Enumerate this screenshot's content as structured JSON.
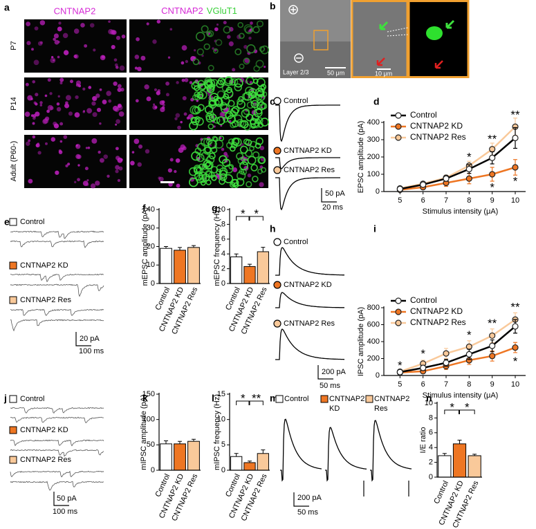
{
  "panel_letters": [
    "a",
    "b",
    "c",
    "d",
    "e",
    "f",
    "g",
    "h",
    "i",
    "j",
    "k",
    "l",
    "m",
    "n"
  ],
  "panel_a": {
    "columns": [
      [
        "CNTNAP2"
      ],
      [
        "CNTNAP2",
        "VGluT1"
      ]
    ],
    "rows": [
      "P7",
      "P14",
      "Adult (P60-)"
    ]
  },
  "panel_b": {
    "label": "Layer 2/3",
    "scale_bars": [
      "50 μm",
      "10 μm"
    ]
  },
  "panel_c": {
    "labels": [
      "Control",
      "CNTNAP2 KD",
      "CNTNAP2 Res"
    ],
    "scale_bars": [
      "50 pA",
      "20 ms"
    ]
  },
  "panel_e": {
    "labels": [
      "Control",
      "CNTNAP2 KD",
      "CNTNAP2 Res"
    ],
    "scale_bars": [
      "20 pA",
      "100 ms"
    ]
  },
  "panel_h": {
    "labels": [
      "Control",
      "CNTNAP2 KD",
      "CNTNAP2 Res"
    ],
    "scale_bars": [
      "200 pA",
      "50 ms"
    ]
  },
  "panel_j": {
    "labels": [
      "Control",
      "CNTNAP2 KD",
      "CNTNAP2 Res"
    ],
    "scale_bars": [
      "50 pA",
      "100 ms"
    ]
  },
  "panel_m": {
    "labels": [
      [
        "Control"
      ],
      [
        "CNTNAP2",
        "KD"
      ],
      [
        "CNTNAP2",
        "Res"
      ]
    ],
    "scale_bars": [
      "200 pA",
      "50 ms"
    ]
  },
  "chart_data": [
    {
      "type": "line",
      "ylabel": "EPSC amplitude (pA)",
      "xlabel": "Stimulus intensity (μA)",
      "x": [
        5,
        6,
        7,
        8,
        9,
        10
      ],
      "xlim": [
        4.3,
        10.45
      ],
      "xticks": [
        5,
        6,
        7,
        8,
        9,
        10
      ],
      "ylim": [
        0,
        400
      ],
      "yticks": [
        0,
        100,
        200,
        300,
        400
      ],
      "legend": "upper left",
      "series": [
        {
          "name": "Control",
          "color": "#000000",
          "marker_color": "#ffffff",
          "values": [
            15,
            40,
            75,
            130,
            195,
            310
          ],
          "errors": [
            5,
            10,
            15,
            25,
            35,
            60
          ]
        },
        {
          "name": "CNTNAP2 KD",
          "color": "#ee7623",
          "marker_color": "#ee7623",
          "values": [
            10,
            25,
            50,
            75,
            100,
            140
          ],
          "errors": [
            5,
            10,
            20,
            30,
            40,
            45
          ]
        },
        {
          "name": "CNTNAP2 Res",
          "color": "#f9c99a",
          "marker_color": "#f9c99a",
          "values": [
            18,
            45,
            80,
            150,
            245,
            375
          ],
          "errors": [
            5,
            10,
            15,
            25,
            35,
            50
          ]
        }
      ],
      "annotations": [
        {
          "text": "*",
          "x": 8,
          "y": 195
        },
        {
          "text": "**",
          "x": 9,
          "y": 300
        },
        {
          "text": "**",
          "x": 10,
          "y": 440
        },
        {
          "text": "*",
          "x": 9,
          "y": 20
        },
        {
          "text": "*",
          "x": 10,
          "y": 55
        }
      ]
    },
    {
      "type": "line",
      "ylabel": "IPSC amplitude (pA)",
      "xlabel": "Stimulus intensity (μA)",
      "x": [
        5,
        6,
        7,
        8,
        9,
        10
      ],
      "xlim": [
        4.3,
        10.45
      ],
      "xticks": [
        5,
        6,
        7,
        8,
        9,
        10
      ],
      "ylim": [
        0,
        800
      ],
      "yticks": [
        0,
        200,
        400,
        600,
        800
      ],
      "legend": "upper left",
      "series": [
        {
          "name": "Control",
          "color": "#000000",
          "marker_color": "#ffffff",
          "values": [
            40,
            90,
            150,
            250,
            350,
            580
          ],
          "errors": [
            15,
            30,
            40,
            60,
            70,
            80
          ]
        },
        {
          "name": "CNTNAP2 KD",
          "color": "#ee7623",
          "marker_color": "#ee7623",
          "values": [
            35,
            50,
            110,
            180,
            230,
            330
          ],
          "errors": [
            15,
            20,
            40,
            50,
            60,
            60
          ]
        },
        {
          "name": "CNTNAP2 Res",
          "color": "#f9c99a",
          "marker_color": "#f9c99a",
          "values": [
            45,
            140,
            260,
            340,
            470,
            660
          ],
          "errors": [
            15,
            40,
            60,
            70,
            80,
            80
          ]
        }
      ],
      "annotations": [
        {
          "text": "*",
          "x": 5,
          "y": 110
        },
        {
          "text": "*",
          "x": 6,
          "y": 250
        },
        {
          "text": "*",
          "x": 8,
          "y": 470
        },
        {
          "text": "**",
          "x": 9,
          "y": 610
        },
        {
          "text": "**",
          "x": 10,
          "y": 800
        },
        {
          "text": "*",
          "x": 10,
          "y": 160
        }
      ]
    },
    {
      "type": "bar",
      "ylabel": "mEPSC amplitude (pA)",
      "categories": [
        "Control",
        "CNTNAP2 KD",
        "CNTNAP2 Res"
      ],
      "values": [
        19,
        18,
        19.5
      ],
      "errors": [
        1,
        1.5,
        1
      ],
      "colors": [
        "#ffffff",
        "#ee7623",
        "#f9c99a"
      ],
      "ylim": [
        0,
        40
      ],
      "yticks": [
        0,
        10,
        20,
        30,
        40
      ],
      "brackets": []
    },
    {
      "type": "bar",
      "ylabel": "mEPSC frequency (Hz)",
      "categories": [
        "Control",
        "CNTNAP2 KD",
        "CNTNAP2 Res"
      ],
      "values": [
        3.6,
        2.3,
        4.3
      ],
      "errors": [
        0.4,
        0.3,
        0.6
      ],
      "colors": [
        "#ffffff",
        "#ee7623",
        "#f9c99a"
      ],
      "ylim": [
        0,
        10
      ],
      "yticks": [
        0,
        2,
        4,
        6,
        8,
        10
      ],
      "brackets": [
        {
          "from": 0,
          "to": 1,
          "text": "*"
        },
        {
          "from": 1,
          "to": 2,
          "text": "*"
        }
      ]
    },
    {
      "type": "bar",
      "ylabel": "mIPSC amplitude (pA)",
      "categories": [
        "Control",
        "CNTNAP2 KD",
        "CNTNAP2 Res"
      ],
      "values": [
        52,
        52,
        57
      ],
      "errors": [
        6,
        5,
        4
      ],
      "colors": [
        "#ffffff",
        "#ee7623",
        "#f9c99a"
      ],
      "ylim": [
        0,
        150
      ],
      "yticks": [
        0,
        50,
        100,
        150
      ],
      "brackets": []
    },
    {
      "type": "bar",
      "ylabel": "mIPSC frequency (Hz)",
      "categories": [
        "Control",
        "CNTNAP2 KD",
        "CNTNAP2 Res"
      ],
      "values": [
        2.7,
        1.5,
        3.3
      ],
      "errors": [
        0.6,
        0.3,
        0.7
      ],
      "colors": [
        "#ffffff",
        "#ee7623",
        "#f9c99a"
      ],
      "ylim": [
        0,
        15
      ],
      "yticks": [
        0,
        5,
        10,
        15
      ],
      "brackets": [
        {
          "from": 0,
          "to": 1,
          "text": "*"
        },
        {
          "from": 1,
          "to": 2,
          "text": "**"
        }
      ]
    },
    {
      "type": "bar",
      "ylabel": "I/E ratio",
      "categories": [
        "Control",
        "CNTNAP2 KD",
        "CNTNAP2 Res"
      ],
      "values": [
        2.9,
        4.5,
        2.9
      ],
      "errors": [
        0.3,
        0.5,
        0.2
      ],
      "colors": [
        "#ffffff",
        "#ee7623",
        "#f9c99a"
      ],
      "ylim": [
        0,
        10
      ],
      "yticks": [
        0,
        2,
        4,
        6,
        8,
        10
      ],
      "brackets": [
        {
          "from": 0,
          "to": 1,
          "text": "*"
        },
        {
          "from": 1,
          "to": 2,
          "text": "*"
        }
      ]
    }
  ]
}
